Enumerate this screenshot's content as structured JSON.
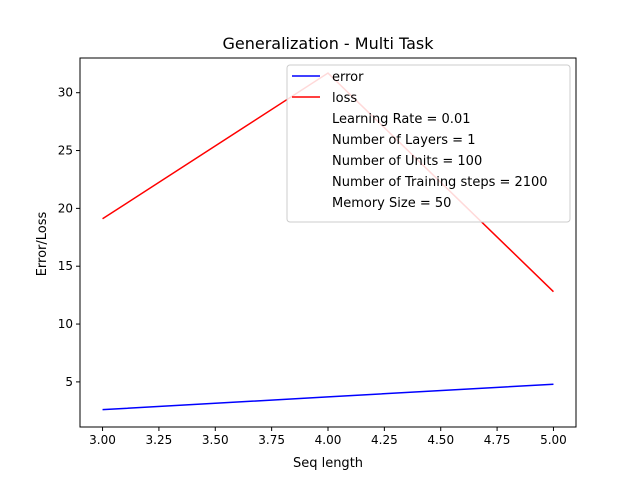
{
  "chart_data": {
    "type": "line",
    "title": "Generalization - Multi Task",
    "xlabel": "Seq length",
    "ylabel": "Error/Loss",
    "xlim": [
      2.9,
      5.1
    ],
    "ylim": [
      1.1,
      33.0
    ],
    "xticks": [
      3.0,
      3.25,
      3.5,
      3.75,
      4.0,
      4.25,
      4.5,
      4.75,
      5.0
    ],
    "xtick_labels": [
      "3.00",
      "3.25",
      "3.50",
      "3.75",
      "4.00",
      "4.25",
      "4.50",
      "4.75",
      "5.00"
    ],
    "yticks": [
      5,
      10,
      15,
      20,
      25,
      30
    ],
    "ytick_labels": [
      "5",
      "10",
      "15",
      "20",
      "25",
      "30"
    ],
    "grid": false,
    "legend_position": "top-right",
    "series": [
      {
        "name": "error",
        "color": "#0000ff",
        "x": [
          3,
          4,
          5
        ],
        "values": [
          2.6,
          3.7,
          4.8
        ]
      },
      {
        "name": "loss",
        "color": "#ff0000",
        "x": [
          3,
          4,
          5
        ],
        "values": [
          19.1,
          31.7,
          12.8
        ]
      }
    ],
    "legend_notes": [
      "Learning Rate = 0.01",
      "Number of Layers = 1",
      "Number of Units = 100",
      "Number of Training steps = 2100",
      "Memory Size = 50"
    ]
  }
}
